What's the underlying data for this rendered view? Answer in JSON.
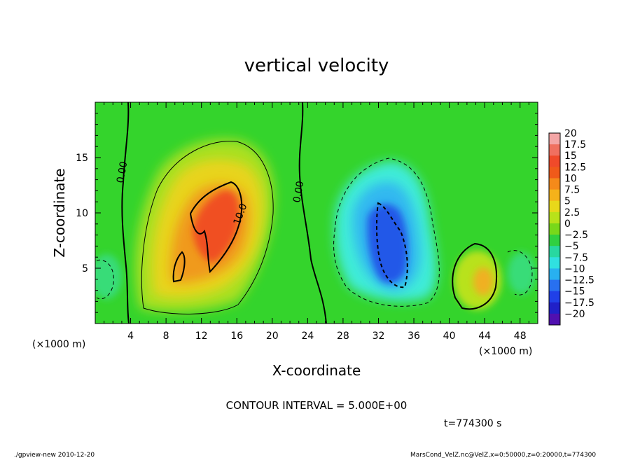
{
  "chart_data": {
    "type": "heatmap",
    "title": "vertical velocity",
    "xlabel": "X-coordinate",
    "ylabel": "Z-coordinate",
    "x_unit_left": "(×1000 m)",
    "x_unit_right": "(×1000 m)",
    "xlim": [
      0,
      50
    ],
    "ylim": [
      0,
      20
    ],
    "x_ticks": [
      4,
      8,
      12,
      16,
      20,
      24,
      28,
      32,
      36,
      40,
      44,
      48
    ],
    "y_ticks": [
      5,
      10,
      15
    ],
    "colorbar": {
      "labels": [
        "20",
        "17.5",
        "15",
        "12.5",
        "10",
        "7.5",
        "5",
        "2.5",
        "0",
        "−2.5",
        "−5",
        "−7.5",
        "−10",
        "−12.5",
        "−15",
        "−17.5",
        "−20"
      ],
      "colors": [
        "#f4a6a6",
        "#f07060",
        "#f04a2a",
        "#f05a1a",
        "#f58a1a",
        "#f5b21a",
        "#e8d81a",
        "#b8e21a",
        "#78d81a",
        "#30d040",
        "#28d8a0",
        "#30e0e0",
        "#28b0f0",
        "#2870f0",
        "#2040e8",
        "#2020c8",
        "#5010b0"
      ]
    },
    "contour_labels": [
      "0.00",
      "0.00",
      "10.0"
    ],
    "contour_interval": "CONTOUR INTERVAL = 5.000E+00",
    "time": "t=774300 s",
    "cells": [
      {
        "x": 14,
        "z": 10,
        "w": 18
      },
      {
        "x": 14,
        "z": 7,
        "w": 15
      },
      {
        "x": 12,
        "z": 10,
        "w": 12
      },
      {
        "x": 10,
        "z": 6,
        "w": 10
      },
      {
        "x": 16,
        "z": 12,
        "w": 8
      },
      {
        "x": 44,
        "z": 4,
        "w": 8
      },
      {
        "x": 33,
        "z": 8,
        "w": -15
      },
      {
        "x": 33,
        "z": 5,
        "w": -12
      },
      {
        "x": 31,
        "z": 10,
        "w": -10
      },
      {
        "x": 35,
        "z": 6,
        "w": -8
      }
    ]
  },
  "footer": {
    "left": "./gpview-new  2010-12-20",
    "right": "MarsCond_VelZ.nc@VelZ,x=0:50000,z=0:20000,t=774300"
  },
  "colors": {
    "field_background": "#34d42c",
    "positive_halo": "#b8e21a",
    "negative_halo": "#40f0d0"
  }
}
